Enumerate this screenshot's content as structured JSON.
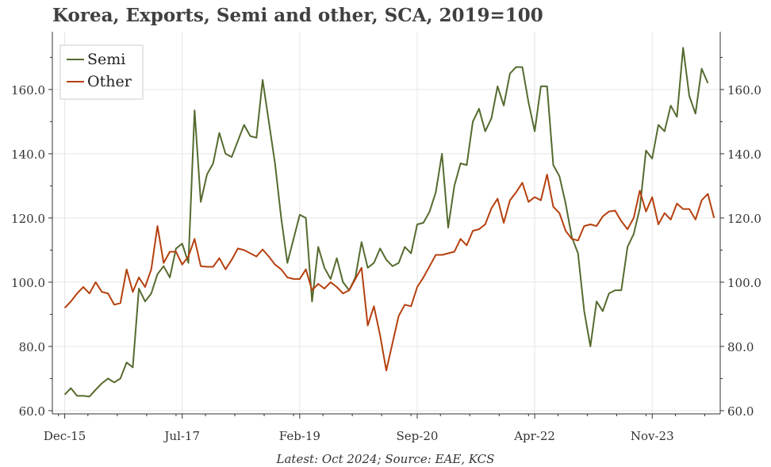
{
  "chart_data": {
    "type": "line",
    "title": "Korea, Exports, Semi and other, SCA, 2019=100",
    "footnote": "Latest: Oct 2024; Source: EAE, KCS",
    "xlabel": "",
    "ylabel": "",
    "ylim": [
      59,
      178
    ],
    "y_ticks": [
      60,
      80,
      100,
      120,
      140,
      160
    ],
    "y_tick_labels": [
      "60.0",
      "80.0",
      "100.0",
      "120.0",
      "140.0",
      "160.0"
    ],
    "x_tick_labels": [
      "Dec-15",
      "Jul-17",
      "Feb-19",
      "Sep-20",
      "Apr-22",
      "Nov-23"
    ],
    "x_range_months": [
      -2,
      106
    ],
    "x_ticks_months": [
      0,
      19,
      38,
      57,
      76,
      95
    ],
    "legend_position": "top-left",
    "colors": {
      "Semi": "#556b2f",
      "Other": "#b5400f",
      "grid": "#e5e5e5",
      "axis": "#333333"
    },
    "series": [
      {
        "name": "Semi",
        "start_month": 0,
        "values": [
          65,
          67,
          64.6,
          64.6,
          64.4,
          66.5,
          68.5,
          70,
          68.8,
          70,
          75,
          73.5,
          98,
          94,
          96.5,
          102.5,
          105,
          101.5,
          110.5,
          112,
          106,
          153.5,
          125,
          133.5,
          137,
          146.5,
          140,
          139,
          144,
          149,
          145.5,
          145,
          163,
          150,
          137,
          120,
          106,
          113.5,
          121,
          120,
          94,
          111,
          104.5,
          101,
          107.5,
          100,
          97.5,
          101.5,
          112.5,
          104.5,
          106,
          110.5,
          107,
          105,
          106,
          111,
          109,
          118,
          118.5,
          122,
          128,
          140,
          117,
          130,
          137,
          136.5,
          150,
          154,
          147,
          151,
          161,
          155,
          165,
          167,
          167,
          156,
          147,
          161,
          161,
          136.5,
          133,
          124.5,
          114,
          109,
          91,
          80,
          94,
          91,
          96.5,
          97.5,
          97.5,
          111,
          115,
          123,
          141,
          138.5,
          149,
          147,
          155,
          151.5,
          173,
          158,
          152.5,
          166.5,
          162
        ]
      },
      {
        "name": "Other",
        "start_month": 0,
        "values": [
          92,
          94,
          96.5,
          98.5,
          96.5,
          100,
          97,
          96.5,
          93,
          93.5,
          104,
          97,
          101.5,
          98.5,
          104,
          117.5,
          106,
          109.5,
          109.5,
          105.5,
          108,
          113.5,
          105,
          104.8,
          104.8,
          107.5,
          104,
          107,
          110.5,
          110,
          109,
          108,
          110.2,
          108,
          105.5,
          104,
          101.5,
          101,
          101,
          104,
          97.5,
          99.5,
          98,
          100,
          98.5,
          96.5,
          97.5,
          101,
          104.5,
          86.5,
          92.5,
          83.5,
          72.5,
          81,
          89.5,
          93,
          92.5,
          98.5,
          101.5,
          105,
          108.5,
          108.5,
          109,
          109.5,
          113.5,
          111.5,
          116,
          116.5,
          118,
          123,
          126,
          118.5,
          125.5,
          128,
          131,
          125,
          126.5,
          125.5,
          133.5,
          123.5,
          121.5,
          116,
          113.5,
          113,
          117.5,
          118,
          117.5,
          120.5,
          122,
          122.3,
          119,
          116.5,
          120,
          128.5,
          122,
          126.5,
          118,
          121.5,
          119.5,
          124.5,
          122.8,
          122.8,
          119.5,
          125.5,
          127.5,
          120
        ]
      }
    ]
  }
}
